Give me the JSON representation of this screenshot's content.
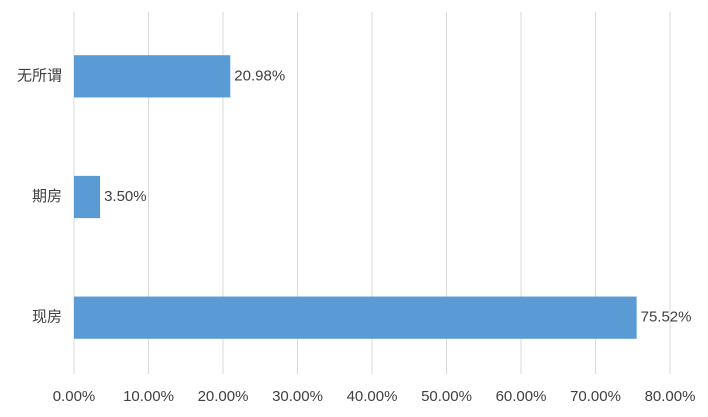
{
  "chart_data": {
    "type": "bar",
    "orientation": "horizontal",
    "categories": [
      "无所谓",
      "期房",
      "现房"
    ],
    "values": [
      20.98,
      3.5,
      75.52
    ],
    "value_labels": [
      "20.98%",
      "3.50%",
      "75.52%"
    ],
    "color": "#5b9bd5",
    "xlim": [
      0,
      80
    ],
    "xticks": [
      {
        "value": 0,
        "label": "0.00%"
      },
      {
        "value": 10,
        "label": "10.00%"
      },
      {
        "value": 20,
        "label": "20.00%"
      },
      {
        "value": 30,
        "label": "30.00%"
      },
      {
        "value": 40,
        "label": "40.00%"
      },
      {
        "value": 50,
        "label": "50.00%"
      },
      {
        "value": 60,
        "label": "60.00%"
      },
      {
        "value": 70,
        "label": "70.00%"
      },
      {
        "value": 80,
        "label": "80.00%"
      }
    ],
    "grid": true
  }
}
